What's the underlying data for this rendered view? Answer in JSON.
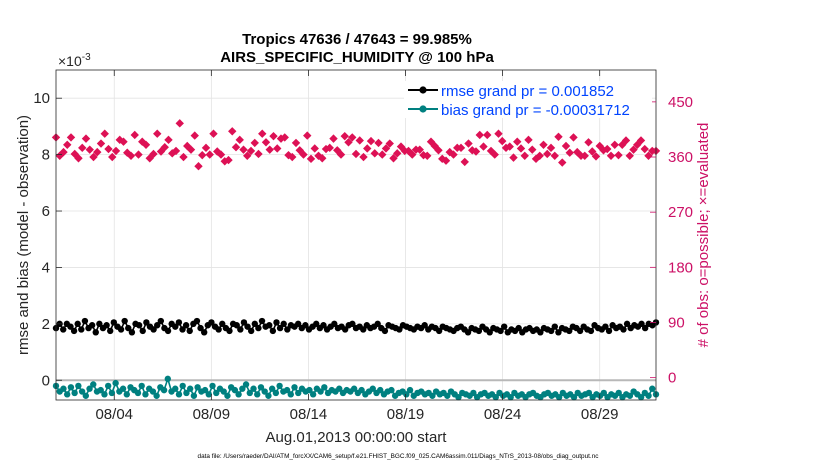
{
  "chart_data": {
    "type": "line",
    "title": "Tropics 47636 / 47643 = 99.985%",
    "subtitle": "AIRS_SPECIFIC_HUMIDITY @ 100 hPa",
    "xlabel": "Aug.01,2013 00:00:00 start",
    "ylabel_left": "rmse and bias (model - observation)",
    "ylabel_right": "# of obs: o=possible; ×=evaluated",
    "exponent_label": "×10",
    "exponent_power": "-3",
    "footer": "data file: /Users/raeder/DAI/ATM_forcXX/CAM6_setup/f.e21.FHIST_BGC.f09_025.CAM6assim.011/Diags_NTrS_2013-08/obs_diag_output.nc",
    "x_ticks": [
      "08/04",
      "08/09",
      "08/14",
      "08/19",
      "08/24",
      "08/29"
    ],
    "x_tick_days": [
      4,
      9,
      14,
      19,
      24,
      29
    ],
    "xlim": [
      1,
      31.9
    ],
    "y_left_ticks": [
      "0",
      "2",
      "4",
      "6",
      "8",
      "10"
    ],
    "y_left_tick_values": [
      0,
      2,
      4,
      6,
      8,
      10
    ],
    "ylim_left": [
      -0.7,
      11.0
    ],
    "y_right_ticks": [
      "0",
      "90",
      "180",
      "270",
      "360",
      "450"
    ],
    "y_right_tick_values": [
      0,
      90,
      180,
      270,
      360,
      450
    ],
    "ylim_right": [
      -36.5,
      502
    ],
    "grid": true,
    "legend_position": "top-right",
    "series": [
      {
        "name": "rmse grand pr = 0.001852",
        "axis": "left",
        "unit_scale": "1e-3",
        "color": "#000000",
        "marker": "circle",
        "values": [
          1.85,
          2.0,
          1.8,
          2.0,
          1.9,
          1.75,
          2.0,
          1.8,
          2.1,
          1.85,
          1.95,
          1.7,
          2.0,
          1.85,
          1.95,
          1.75,
          2.05,
          1.9,
          1.8,
          2.1,
          1.85,
          1.7,
          2.0,
          1.95,
          1.75,
          2.05,
          1.9,
          1.8,
          1.95,
          2.1,
          1.85,
          1.75,
          2.0,
          1.9,
          2.05,
          1.8,
          1.95,
          1.75,
          2.0,
          2.1,
          1.85,
          1.7,
          1.95,
          2.05,
          1.9,
          1.8,
          2.0,
          1.85,
          1.75,
          2.0,
          1.95,
          1.8,
          2.05,
          1.9,
          1.75,
          2.0,
          1.85,
          2.1,
          1.9,
          1.95,
          1.75,
          2.05,
          1.85,
          2.0,
          1.8,
          1.95,
          1.9,
          2.0,
          1.85,
          1.95,
          1.8,
          1.9,
          2.0,
          1.85,
          1.95,
          1.8,
          1.9,
          2.0,
          1.85,
          1.9,
          1.8,
          1.95,
          2.0,
          1.85,
          1.9,
          1.8,
          1.95,
          1.85,
          1.9,
          2.0,
          1.85,
          1.75,
          1.95,
          1.9,
          1.85,
          1.8,
          1.95,
          1.9,
          1.85,
          1.8,
          1.9,
          1.85,
          1.95,
          1.8,
          1.9,
          1.85,
          1.75,
          1.9,
          1.85,
          1.8,
          1.75,
          1.85,
          1.9,
          1.8,
          1.7,
          1.85,
          1.8,
          1.75,
          1.9,
          1.8,
          1.7,
          1.85,
          1.8,
          1.75,
          1.9,
          1.7,
          1.8,
          1.75,
          1.85,
          1.7,
          1.8,
          1.85,
          1.75,
          1.8,
          1.7,
          1.85,
          1.8,
          1.75,
          1.9,
          1.7,
          1.85,
          1.8,
          1.75,
          1.9,
          1.85,
          1.75,
          1.9,
          1.8,
          1.75,
          1.95,
          1.85,
          1.8,
          1.9,
          1.75,
          1.95,
          1.85,
          1.9,
          1.8,
          2.0,
          1.85,
          1.95,
          1.9,
          2.0,
          1.85,
          2.0,
          1.95,
          2.05
        ]
      },
      {
        "name": "bias grand pr = -0.00031712",
        "axis": "left",
        "unit_scale": "1e-3",
        "color": "#008080",
        "marker": "circle",
        "values": [
          -0.2,
          -0.4,
          -0.3,
          -0.5,
          -0.25,
          -0.45,
          -0.2,
          -0.4,
          -0.55,
          -0.3,
          -0.15,
          -0.4,
          -0.35,
          -0.5,
          -0.2,
          -0.45,
          -0.1,
          -0.4,
          -0.3,
          -0.5,
          -0.25,
          -0.35,
          -0.45,
          -0.2,
          -0.5,
          -0.3,
          -0.4,
          -0.55,
          -0.25,
          -0.35,
          0.05,
          -0.4,
          -0.3,
          -0.5,
          -0.2,
          -0.45,
          -0.3,
          -0.55,
          -0.25,
          -0.4,
          -0.35,
          -0.5,
          -0.2,
          -0.45,
          -0.3,
          -0.4,
          -0.55,
          -0.25,
          -0.35,
          -0.5,
          -0.3,
          -0.15,
          -0.45,
          -0.3,
          -0.5,
          -0.25,
          -0.4,
          -0.55,
          -0.3,
          -0.45,
          -0.2,
          -0.4,
          -0.35,
          -0.5,
          -0.25,
          -0.45,
          -0.3,
          -0.4,
          -0.35,
          -0.5,
          -0.3,
          -0.4,
          -0.25,
          -0.45,
          -0.35,
          -0.4,
          -0.3,
          -0.45,
          -0.35,
          -0.4,
          -0.3,
          -0.45,
          -0.35,
          -0.5,
          -0.4,
          -0.3,
          -0.45,
          -0.35,
          -0.5,
          -0.4,
          -0.35,
          -0.55,
          -0.45,
          -0.4,
          -0.5,
          -0.35,
          -0.55,
          -0.45,
          -0.4,
          -0.5,
          -0.45,
          -0.55,
          -0.4,
          -0.5,
          -0.45,
          -0.55,
          -0.4,
          -0.5,
          -0.6,
          -0.45,
          -0.5,
          -0.55,
          -0.45,
          -0.6,
          -0.5,
          -0.45,
          -0.55,
          -0.5,
          -0.6,
          -0.45,
          -0.55,
          -0.5,
          -0.6,
          -0.45,
          -0.55,
          -0.5,
          -0.6,
          -0.5,
          -0.45,
          -0.55,
          -0.6,
          -0.5,
          -0.45,
          -0.55,
          -0.5,
          -0.6,
          -0.45,
          -0.55,
          -0.5,
          -0.6,
          -0.45,
          -0.55,
          -0.5,
          -0.45,
          -0.6,
          -0.5,
          -0.55,
          -0.45,
          -0.6,
          -0.5,
          -0.55,
          -0.45,
          -0.6,
          -0.5,
          -0.55,
          -0.4,
          -0.5,
          -0.6,
          -0.45,
          -0.55,
          -0.3,
          -0.5
        ]
      },
      {
        "name": "obs evaluated",
        "axis": "right",
        "color": "#dd1155",
        "marker": "x-diamond",
        "values": [
          392,
          362,
          368,
          380,
          392,
          365,
          358,
          375,
          390,
          372,
          360,
          368,
          382,
          398,
          373,
          360,
          370,
          388,
          385,
          367,
          362,
          396,
          364,
          385,
          380,
          358,
          365,
          398,
          369,
          376,
          388,
          366,
          370,
          415,
          360,
          378,
          372,
          395,
          345,
          363,
          375,
          364,
          398,
          369,
          364,
          353,
          355,
          402,
          376,
          388,
          372,
          362,
          370,
          383,
          365,
          398,
          384,
          372,
          394,
          374,
          390,
          392,
          363,
          360,
          383,
          371,
          364,
          395,
          357,
          374,
          362,
          358,
          373,
          375,
          390,
          371,
          364,
          394,
          384,
          392,
          365,
          387,
          360,
          374,
          386,
          366,
          383,
          364,
          374,
          382,
          358,
          366,
          377,
          370,
          370,
          364,
          372,
          372,
          363,
          362,
          385,
          378,
          371,
          357,
          354,
          368,
          364,
          375,
          375,
          352,
          382,
          371,
          369,
          396,
          377,
          396,
          370,
          364,
          398,
          386,
          375,
          377,
          359,
          385,
          374,
          362,
          388,
          372,
          357,
          362,
          380,
          365,
          375,
          362,
          393,
          351,
          378,
          367,
          392,
          368,
          362,
          362,
          384,
          369,
          361,
          378,
          371,
          373,
          362,
          380,
          363,
          380,
          387,
          362,
          372,
          380,
          387,
          373,
          362,
          370,
          370
        ]
      }
    ]
  }
}
